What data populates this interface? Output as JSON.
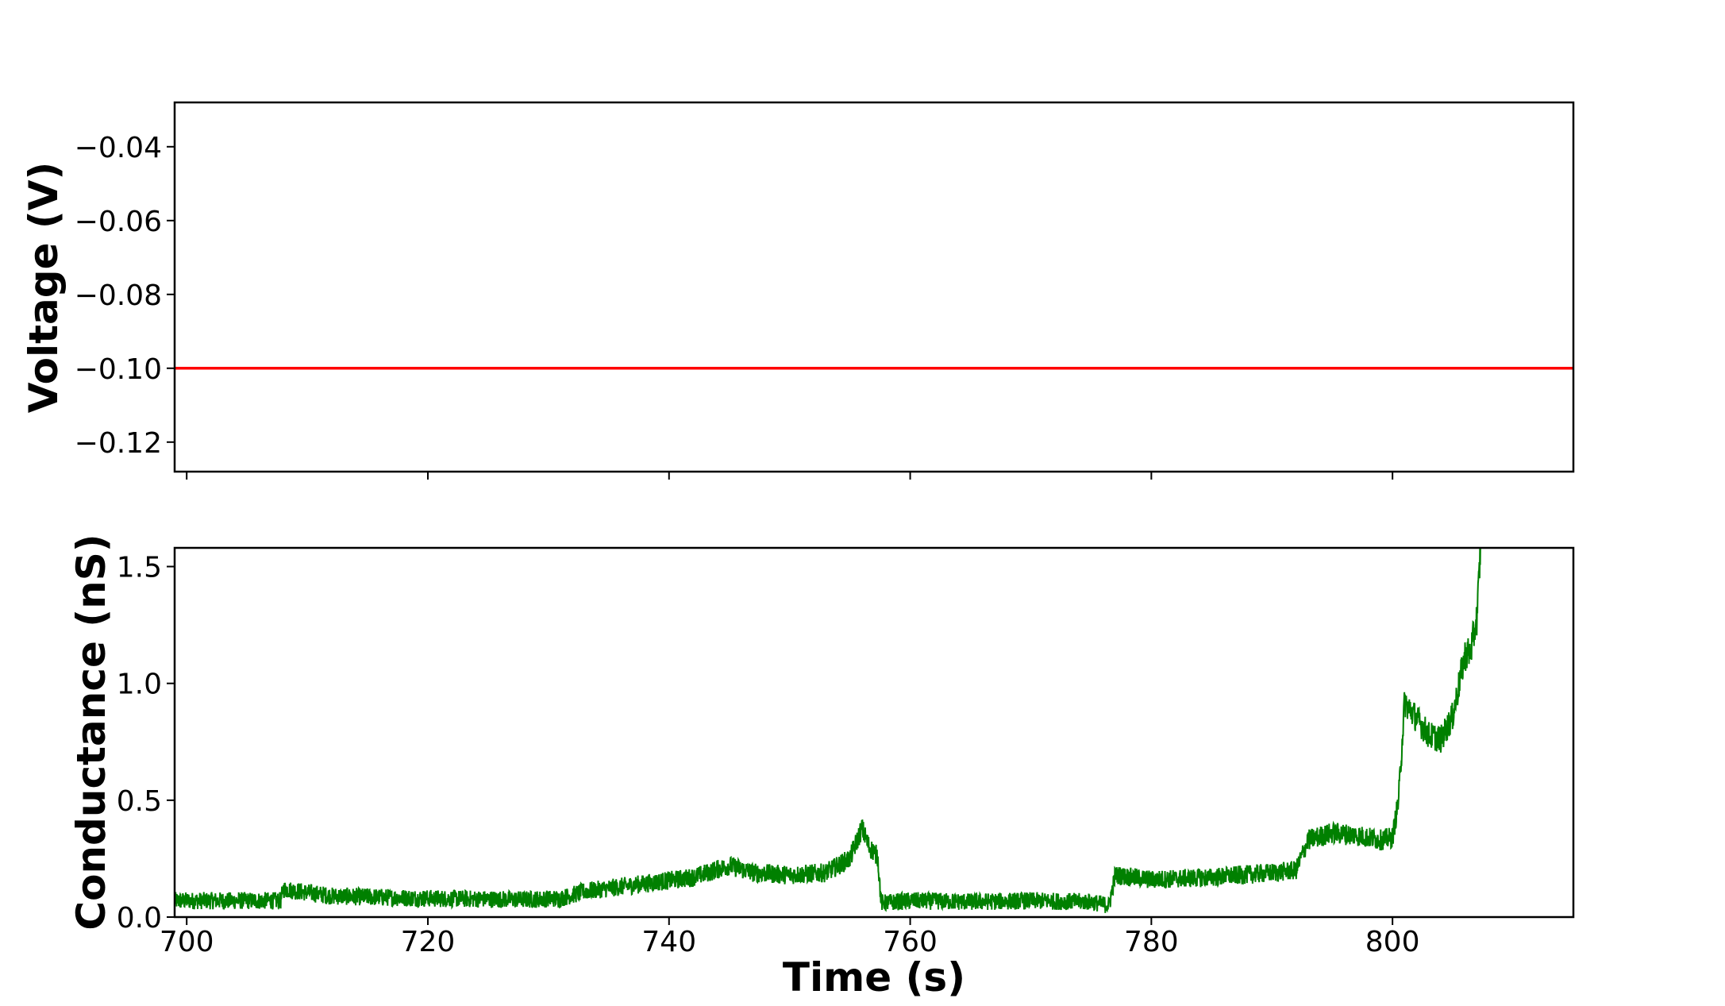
{
  "chart_data": [
    {
      "type": "line",
      "panel": "top",
      "xlabel": "",
      "ylabel": "Voltage (V)",
      "xlim": [
        699,
        815
      ],
      "ylim": [
        -0.128,
        -0.028
      ],
      "xticks": [
        700,
        720,
        740,
        760,
        780,
        800
      ],
      "yticks": [
        -0.12,
        -0.1,
        -0.08,
        -0.06,
        -0.04
      ],
      "ytick_labels": [
        "−0.12",
        "−0.10",
        "−0.08",
        "−0.06",
        "−0.04"
      ],
      "grid": false,
      "series": [
        {
          "color": "#ff0000",
          "x": [
            699,
            815
          ],
          "y": [
            -0.1,
            -0.1
          ]
        }
      ]
    },
    {
      "type": "line",
      "panel": "bottom",
      "xlabel": "Time (s)",
      "ylabel": "Conductance (nS)",
      "xlim": [
        699,
        815
      ],
      "ylim": [
        0.0,
        1.58
      ],
      "xticks": [
        700,
        720,
        740,
        760,
        780,
        800
      ],
      "xtick_labels": [
        "700",
        "720",
        "740",
        "760",
        "780",
        "800"
      ],
      "yticks": [
        0.0,
        0.5,
        1.0,
        1.5
      ],
      "ytick_labels": [
        "0.0",
        "0.5",
        "1.0",
        "1.5"
      ],
      "grid": false,
      "series": [
        {
          "color": "#008000",
          "noise_band": 0.035,
          "x": [
            699,
            707.8,
            708,
            712,
            720,
            728,
            731,
            733,
            736,
            739,
            742,
            745,
            747,
            750,
            753,
            755,
            756,
            756.6,
            757.3,
            757.6,
            760,
            765,
            770,
            775,
            776.5,
            777,
            780,
            785,
            790,
            792,
            793,
            795,
            797,
            799,
            800,
            800.5,
            801,
            802,
            803,
            804,
            805,
            806,
            806.5,
            807,
            807.3
          ],
          "y": [
            0.07,
            0.07,
            0.12,
            0.09,
            0.08,
            0.075,
            0.08,
            0.11,
            0.13,
            0.15,
            0.17,
            0.22,
            0.19,
            0.18,
            0.19,
            0.25,
            0.38,
            0.3,
            0.26,
            0.06,
            0.07,
            0.065,
            0.07,
            0.065,
            0.05,
            0.18,
            0.16,
            0.17,
            0.19,
            0.2,
            0.33,
            0.36,
            0.35,
            0.33,
            0.34,
            0.5,
            0.92,
            0.85,
            0.78,
            0.76,
            0.86,
            1.12,
            1.14,
            1.28,
            1.58
          ]
        }
      ]
    }
  ]
}
